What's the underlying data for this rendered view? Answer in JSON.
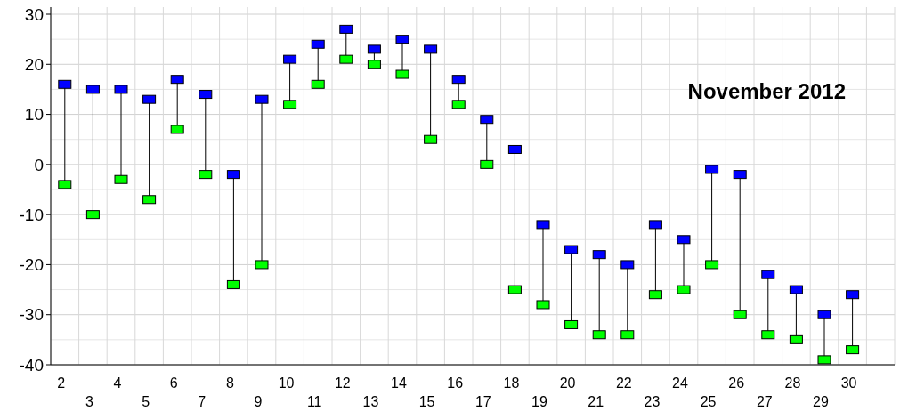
{
  "chart_data": {
    "type": "scatter",
    "categories": [
      "2",
      "3",
      "4",
      "5",
      "6",
      "7",
      "8",
      "9",
      "10",
      "11",
      "12",
      "13",
      "14",
      "15",
      "16",
      "17",
      "18",
      "19",
      "20",
      "21",
      "22",
      "23",
      "24",
      "25",
      "26",
      "27",
      "28",
      "29",
      "30",
      null
    ],
    "series": [
      {
        "color": "#0000ff",
        "values": [
          16,
          15,
          15,
          13,
          17,
          14,
          -2,
          13,
          21,
          24,
          27,
          23,
          25,
          23,
          17,
          9,
          3,
          -12,
          -17,
          -18,
          -20,
          -12,
          -15,
          -1,
          -2,
          -22,
          -25,
          -30,
          -26,
          null
        ]
      },
      {
        "color": "#00ff00",
        "values": [
          -4,
          -10,
          -3,
          -7,
          7,
          -2,
          -24,
          -20,
          12,
          16,
          21,
          20,
          18,
          5,
          12,
          0,
          -25,
          -28,
          -32,
          -34,
          -34,
          -26,
          -25,
          -20,
          -30,
          -34,
          -35,
          -39,
          -37,
          null
        ]
      }
    ],
    "ylim": [
      -40,
      30
    ],
    "yticks": [
      -40,
      -30,
      -20,
      -10,
      0,
      10,
      20,
      30
    ],
    "grid": true,
    "marker": "square",
    "annotations": [
      "November 2012"
    ]
  }
}
